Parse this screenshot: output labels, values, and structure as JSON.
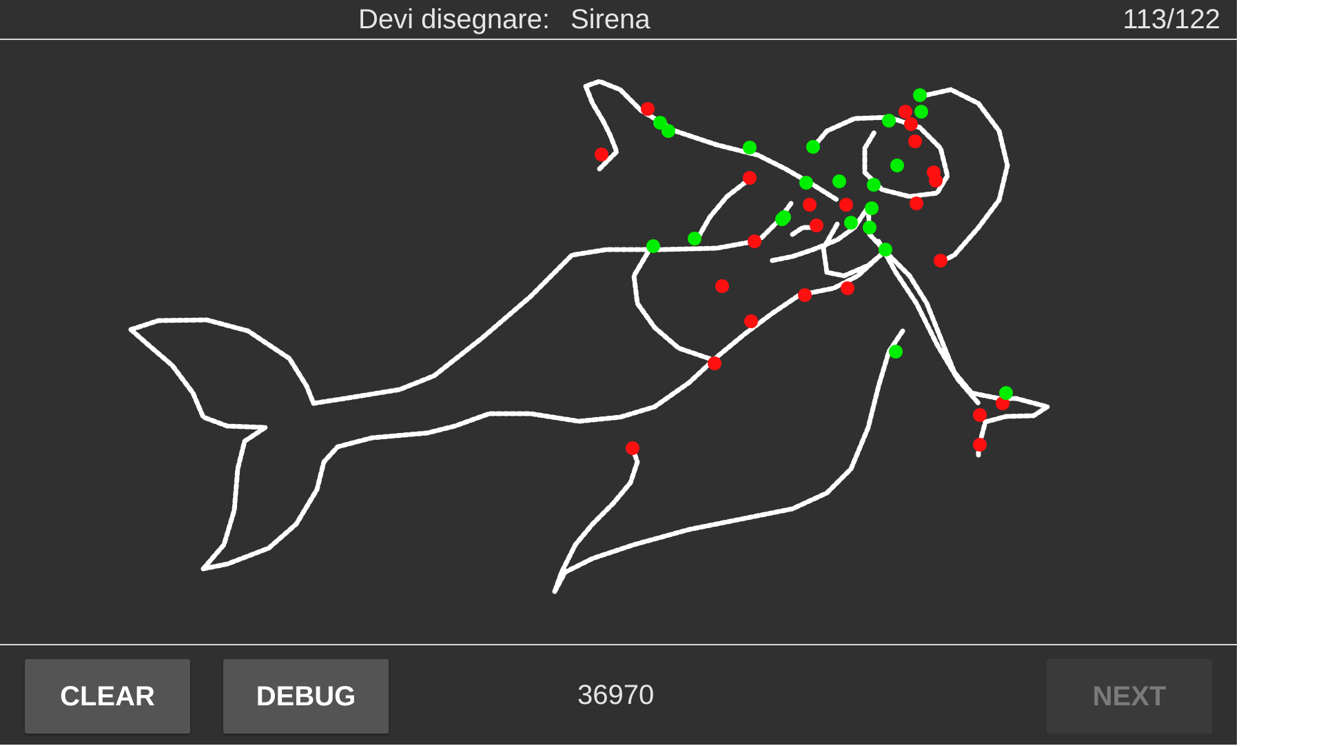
{
  "header": {
    "prompt_label": "Devi disegnare:",
    "prompt_word": "Sirena",
    "progress": "113/122"
  },
  "footer": {
    "clear_label": "CLEAR",
    "debug_label": "DEBUG",
    "score": "36970",
    "next_label": "NEXT"
  },
  "colors": {
    "background": "#303030",
    "stroke": "#ffffff",
    "point_good": "#00ee00",
    "point_bad": "#ff1010",
    "button": "#545454",
    "button_disabled": "#3a3a3a"
  },
  "icons": {
    "canvas": "drawing-canvas"
  }
}
